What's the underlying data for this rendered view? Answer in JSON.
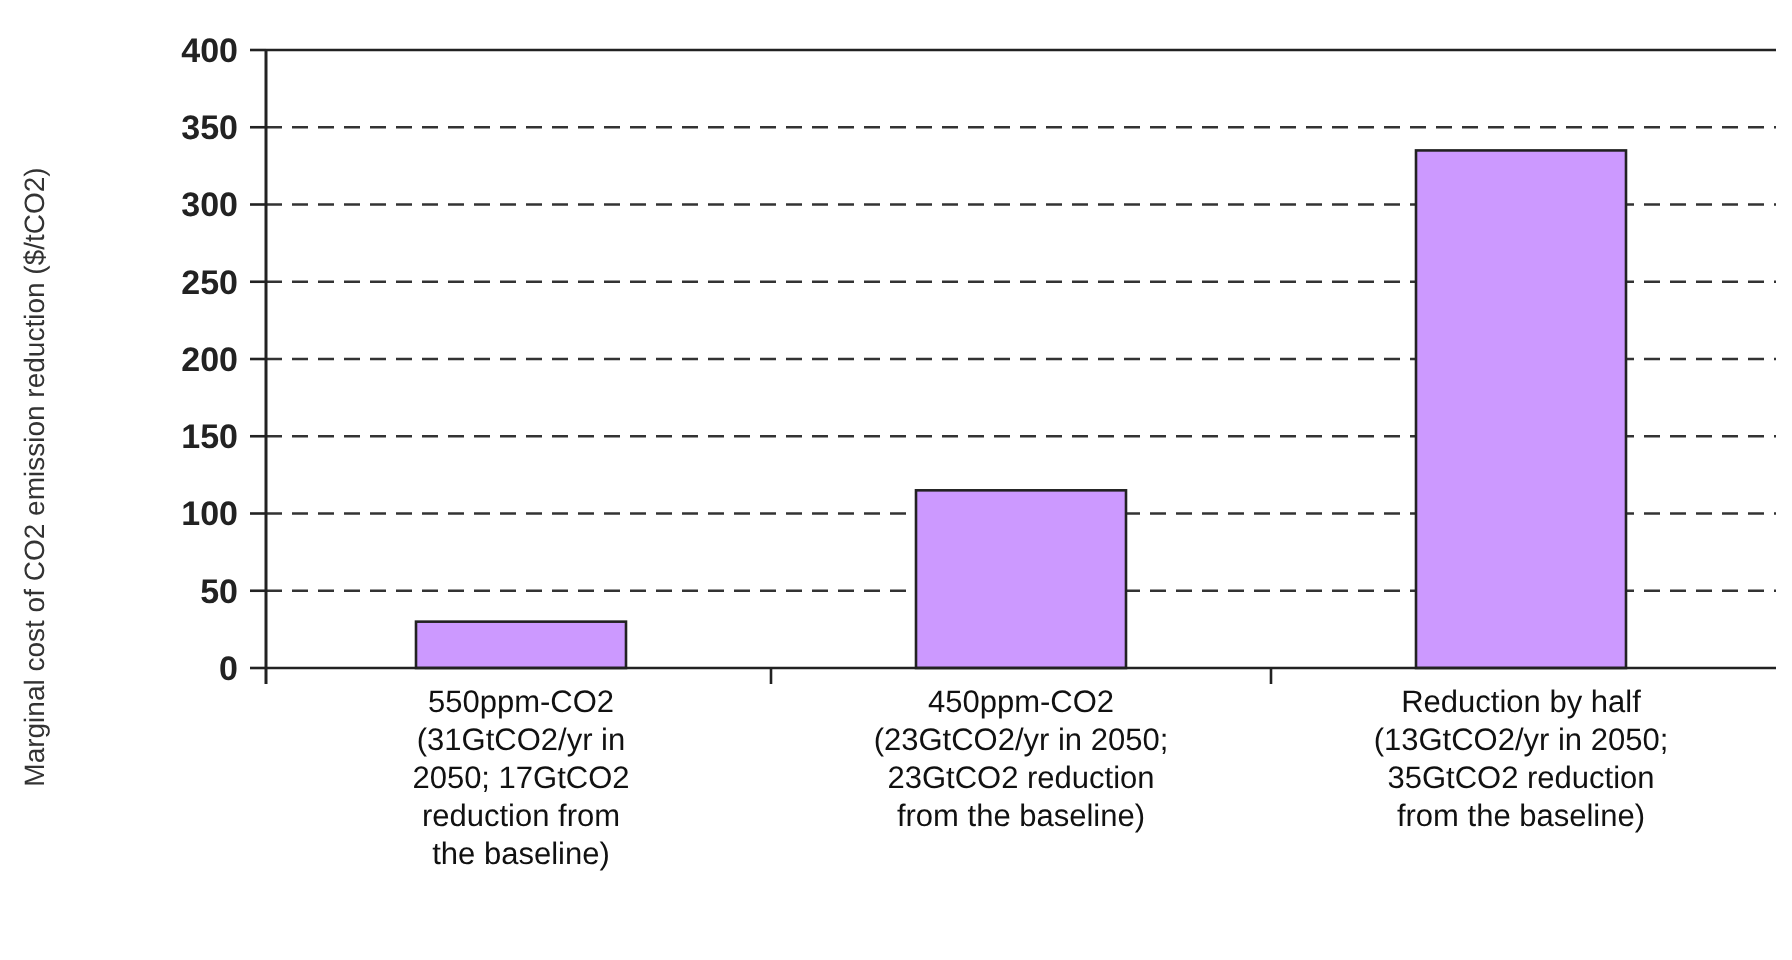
{
  "chart_data": {
    "type": "bar",
    "ylabel": "Marginal cost of CO2 emission reduction ($/tCO2)",
    "categories": [
      "550ppm-CO2\n(31GtCO2/yr in\n2050; 17GtCO2\nreduction from\nthe baseline)",
      "450ppm-CO2\n(23GtCO2/yr in 2050;\n23GtCO2 reduction\nfrom the baseline)",
      "Reduction by half\n(13GtCO2/yr in 2050;\n35GtCO2 reduction\nfrom the baseline)"
    ],
    "values": [
      30,
      115,
      335
    ],
    "color": "#cc99ff",
    "ylim": [
      0,
      400
    ],
    "yticks": [
      0,
      50,
      100,
      150,
      200,
      250,
      300,
      350,
      400
    ],
    "grid": "y"
  }
}
